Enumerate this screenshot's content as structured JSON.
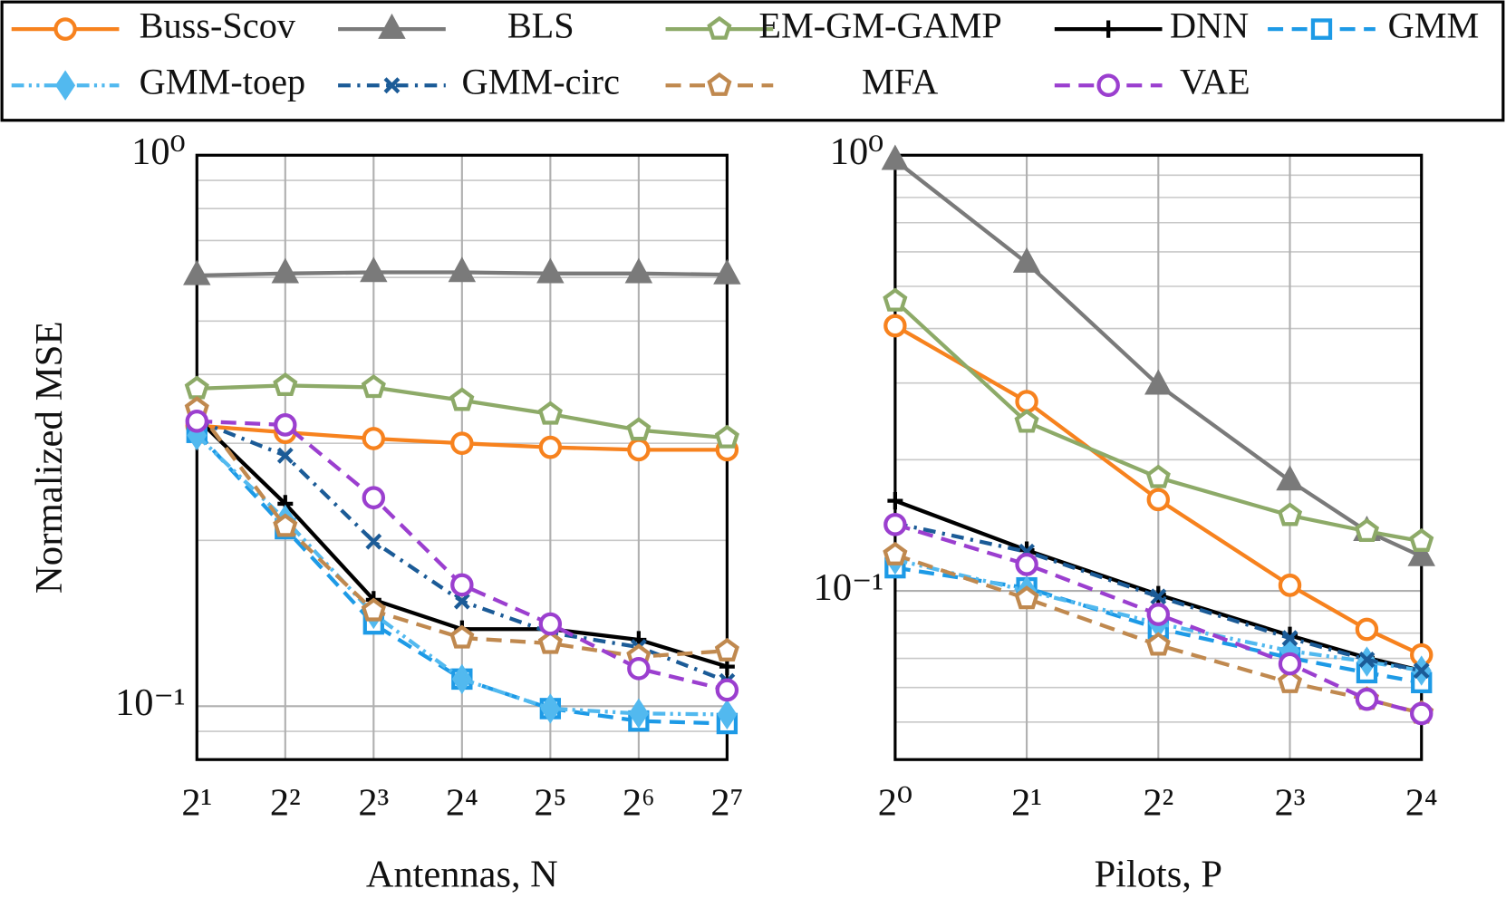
{
  "chart_data": [
    {
      "type": "line",
      "xlabel": "Antennas, N",
      "ylabel": "Normalized MSE",
      "log_x": true,
      "log_y": true,
      "grid": true,
      "minor_grid": true,
      "x": [
        2,
        4,
        8,
        16,
        32,
        64,
        128
      ],
      "xlim": [
        2,
        128
      ],
      "xticks": [
        {
          "value": 2,
          "label": "2¹"
        },
        {
          "value": 4,
          "label": "2²"
        },
        {
          "value": 8,
          "label": "2³"
        },
        {
          "value": 16,
          "label": "2⁴"
        },
        {
          "value": 32,
          "label": "2⁵"
        },
        {
          "value": 64,
          "label": "2⁶"
        },
        {
          "value": 128,
          "label": "2⁷"
        }
      ],
      "ylim": [
        0.08,
        1
      ],
      "yticks": [
        {
          "value": 0.1,
          "label": "10⁻¹"
        },
        {
          "value": 1,
          "label": "10⁰"
        }
      ],
      "series": [
        {
          "name": "Buss-Scov",
          "color": "#f7821e",
          "marker": "circle",
          "dash": "",
          "values": [
            0.323,
            0.314,
            0.306,
            0.3,
            0.295,
            0.292,
            0.292
          ]
        },
        {
          "name": "BLS",
          "color": "#7a7a7a",
          "marker": "triangle",
          "dash": "",
          "values": [
            0.605,
            0.61,
            0.613,
            0.613,
            0.61,
            0.61,
            0.607
          ]
        },
        {
          "name": "EM-GM-GAMP",
          "color": "#8daa68",
          "marker": "pentagon",
          "dash": "",
          "values": [
            0.377,
            0.382,
            0.379,
            0.359,
            0.339,
            0.317,
            0.307
          ]
        },
        {
          "name": "DNN",
          "color": "#000000",
          "marker": "plus",
          "dash": "",
          "values": [
            0.333,
            0.233,
            0.156,
            0.138,
            0.138,
            0.132,
            0.118
          ]
        },
        {
          "name": "GMM",
          "color": "#1d9ae6",
          "marker": "square",
          "dash": "16 9",
          "values": [
            0.314,
            0.21,
            0.141,
            0.112,
            0.099,
            0.094,
            0.093
          ]
        },
        {
          "name": "GMM-toep",
          "color": "#52b9ef",
          "marker": "diamond",
          "dash": "13 5 3 5 3 5",
          "values": [
            0.31,
            0.218,
            0.147,
            0.112,
            0.099,
            0.097,
            0.0966
          ]
        },
        {
          "name": "GMM-circ",
          "color": "#1b5b97",
          "marker": "x",
          "dash": "13 7 3 7",
          "values": [
            0.33,
            0.285,
            0.199,
            0.155,
            0.136,
            0.128,
            0.111
          ]
        },
        {
          "name": "MFA",
          "color": "#c0894f",
          "marker": "pentagon",
          "dash": "16 9",
          "values": [
            0.346,
            0.212,
            0.149,
            0.133,
            0.13,
            0.123,
            0.126
          ]
        },
        {
          "name": "VAE",
          "color": "#9b3fcf",
          "marker": "circle",
          "dash": "16 9",
          "values": [
            0.329,
            0.324,
            0.239,
            0.166,
            0.141,
            0.117,
            0.107
          ]
        }
      ]
    },
    {
      "type": "line",
      "xlabel": "Pilots, P",
      "log_x": true,
      "log_y": true,
      "grid": true,
      "minor_grid": true,
      "x": [
        1,
        2,
        4,
        8,
        12,
        16
      ],
      "xlim": [
        1,
        16
      ],
      "xticks": [
        {
          "value": 1,
          "label": "2⁰"
        },
        {
          "value": 2,
          "label": "2¹"
        },
        {
          "value": 4,
          "label": "2²"
        },
        {
          "value": 8,
          "label": "2³"
        },
        {
          "value": 16,
          "label": "2⁴"
        }
      ],
      "ylim": [
        0.041,
        1
      ],
      "yticks": [
        {
          "value": 0.1,
          "label": "10⁻¹"
        },
        {
          "value": 1,
          "label": "10⁰"
        }
      ],
      "series": [
        {
          "name": "Buss-Scov",
          "color": "#f7821e",
          "marker": "circle",
          "dash": "",
          "values": [
            0.406,
            0.272,
            0.162,
            0.103,
            0.0816,
            0.0713
          ]
        },
        {
          "name": "BLS",
          "color": "#7a7a7a",
          "marker": "triangle",
          "dash": "",
          "values": [
            0.974,
            0.566,
            0.297,
            0.179,
            0.137,
            0.12
          ]
        },
        {
          "name": "EM-GM-GAMP",
          "color": "#8daa68",
          "marker": "pentagon",
          "dash": "",
          "values": [
            0.463,
            0.244,
            0.182,
            0.149,
            0.137,
            0.13
          ]
        },
        {
          "name": "DNN",
          "color": "#000000",
          "marker": "plus",
          "dash": "",
          "values": [
            0.161,
            0.124,
            0.098,
            0.079,
            0.0702,
            0.0656
          ]
        },
        {
          "name": "GMM",
          "color": "#1d9ae6",
          "marker": "square",
          "dash": "16 9",
          "values": [
            0.113,
            0.1016,
            0.082,
            0.0702,
            0.0649,
            0.0616
          ]
        },
        {
          "name": "GMM-toep",
          "color": "#52b9ef",
          "marker": "diamond",
          "dash": "13 5 3 5 3 5",
          "values": [
            0.118,
            0.1,
            0.0842,
            0.0728,
            0.0688,
            0.0656
          ]
        },
        {
          "name": "GMM-circ",
          "color": "#1b5b97",
          "marker": "x",
          "dash": "13 7 3 7",
          "values": [
            0.143,
            0.123,
            0.097,
            0.0779,
            0.0695,
            0.0656
          ]
        },
        {
          "name": "MFA",
          "color": "#c0894f",
          "marker": "pentagon",
          "dash": "16 9",
          "values": [
            0.121,
            0.096,
            0.0751,
            0.0616,
            0.0564,
            0.0524
          ]
        },
        {
          "name": "VAE",
          "color": "#9b3fcf",
          "marker": "circle",
          "dash": "16 9",
          "values": [
            0.142,
            0.115,
            0.0883,
            0.068,
            0.0564,
            0.0523
          ]
        }
      ]
    }
  ]
}
